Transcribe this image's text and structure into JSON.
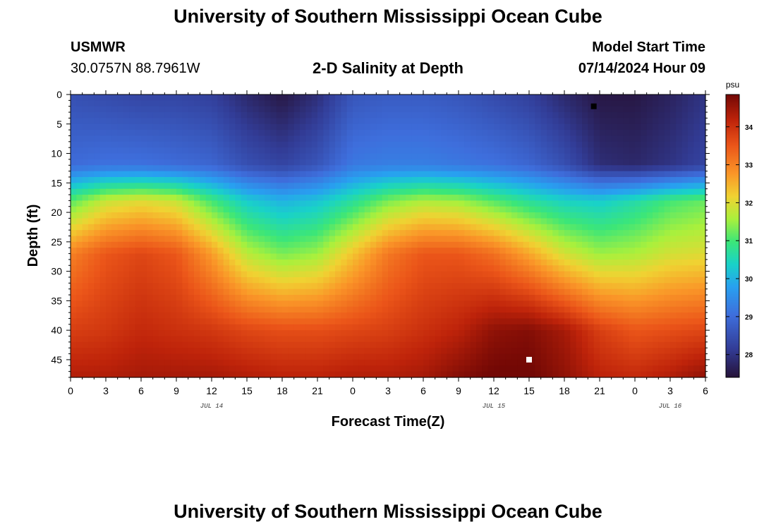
{
  "header": {
    "title": "University of Southern Mississippi Ocean Cube",
    "station": "USMWR",
    "coords": "30.0757N  88.7961W",
    "subtitle": "2-D Salinity at Depth",
    "start_label": "Model Start Time",
    "start_time": "07/14/2024 Hour 09"
  },
  "footer": {
    "title": "University of Southern Mississippi Ocean Cube"
  },
  "chart_data": {
    "type": "heatmap",
    "title": "2-D Salinity at Depth",
    "xlabel": "Forecast Time(Z)",
    "ylabel": "Depth (ft)",
    "x_range_hours": [
      0,
      54
    ],
    "x_ticks": [
      {
        "h": 0,
        "label": "0"
      },
      {
        "h": 3,
        "label": "3"
      },
      {
        "h": 6,
        "label": "6"
      },
      {
        "h": 9,
        "label": "9"
      },
      {
        "h": 12,
        "label": "12"
      },
      {
        "h": 15,
        "label": "15"
      },
      {
        "h": 18,
        "label": "18"
      },
      {
        "h": 21,
        "label": "21"
      },
      {
        "h": 24,
        "label": "0"
      },
      {
        "h": 27,
        "label": "3"
      },
      {
        "h": 30,
        "label": "6"
      },
      {
        "h": 33,
        "label": "9"
      },
      {
        "h": 36,
        "label": "12"
      },
      {
        "h": 39,
        "label": "15"
      },
      {
        "h": 42,
        "label": "18"
      },
      {
        "h": 45,
        "label": "21"
      },
      {
        "h": 48,
        "label": "0"
      },
      {
        "h": 51,
        "label": "3"
      },
      {
        "h": 54,
        "label": "6"
      }
    ],
    "date_labels": [
      {
        "h": 12,
        "label": "JUL 14"
      },
      {
        "h": 36,
        "label": "JUL 15"
      },
      {
        "h": 51,
        "label": "JUL 16"
      }
    ],
    "y_range_ft": [
      0,
      48
    ],
    "y_ticks": [
      0,
      5,
      10,
      15,
      20,
      25,
      30,
      35,
      40,
      45
    ],
    "colorbar": {
      "unit": "psu",
      "min": 27.4,
      "max": 34.85,
      "ticks": [
        28,
        29,
        30,
        31,
        32,
        33,
        34
      ]
    },
    "markers": [
      {
        "name": "min",
        "color": "#000000",
        "h": 44.5,
        "depth": 2
      },
      {
        "name": "max",
        "color": "#ffffff",
        "h": 39,
        "depth": 45
      }
    ],
    "field": {
      "description_depths_ft": [
        0,
        12,
        18,
        27,
        40,
        48
      ],
      "time_hours": [
        0,
        3,
        6,
        9,
        12,
        15,
        18,
        21,
        24,
        27,
        30,
        33,
        36,
        39,
        42,
        45,
        48,
        51,
        54
      ],
      "rows": [
        [
          28.5,
          28.4,
          28.3,
          28.3,
          28.2,
          27.8,
          27.5,
          27.9,
          28.6,
          28.7,
          28.7,
          28.6,
          28.4,
          28.2,
          27.8,
          27.5,
          27.5,
          27.7,
          28.0
        ],
        [
          29.0,
          29.1,
          29.1,
          29.0,
          28.9,
          28.5,
          28.3,
          28.6,
          29.2,
          29.3,
          29.3,
          29.2,
          29.1,
          28.9,
          28.5,
          27.9,
          27.8,
          28.0,
          28.3
        ],
        [
          31.1,
          31.8,
          32.0,
          31.8,
          31.0,
          30.3,
          30.0,
          30.2,
          30.7,
          31.3,
          31.6,
          31.5,
          31.1,
          30.7,
          30.4,
          30.3,
          30.6,
          31.0,
          31.2
        ],
        [
          33.0,
          33.5,
          33.7,
          33.5,
          32.7,
          31.7,
          31.3,
          31.5,
          32.3,
          33.1,
          33.5,
          33.5,
          33.2,
          32.6,
          31.9,
          31.5,
          31.6,
          31.9,
          32.0
        ],
        [
          33.8,
          33.9,
          34.1,
          34.0,
          33.9,
          33.7,
          33.6,
          33.6,
          33.7,
          33.8,
          34.0,
          34.2,
          34.6,
          34.7,
          34.4,
          33.8,
          33.5,
          33.6,
          33.7
        ],
        [
          34.3,
          34.3,
          34.4,
          34.4,
          34.4,
          34.3,
          34.2,
          34.2,
          34.3,
          34.3,
          34.4,
          34.7,
          34.9,
          34.9,
          34.6,
          34.2,
          34.1,
          34.3,
          34.6
        ]
      ]
    }
  }
}
